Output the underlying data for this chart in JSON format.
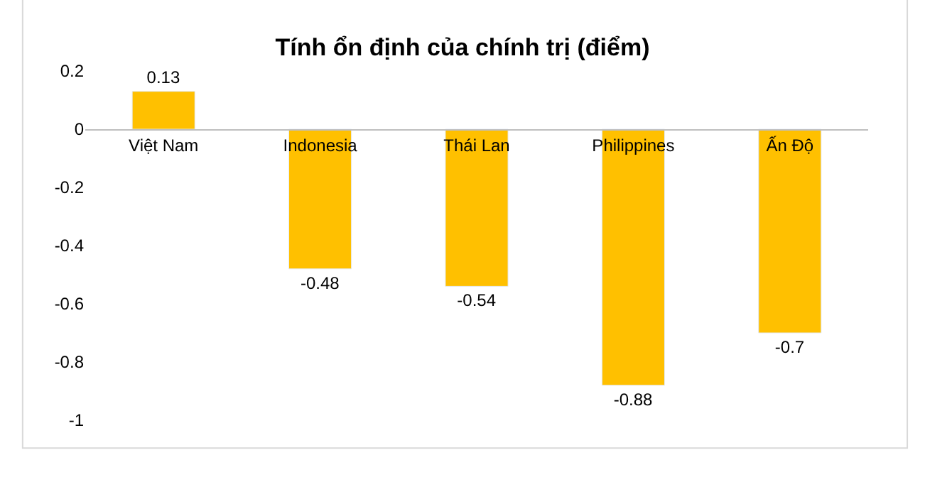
{
  "chart_data": {
    "type": "bar",
    "title": "Tính ổn định của chính trị (điểm)",
    "categories": [
      "Việt Nam",
      "Indonesia",
      "Thái Lan",
      "Philippines",
      "Ấn Độ"
    ],
    "values": [
      0.13,
      -0.48,
      -0.54,
      -0.88,
      -0.7
    ],
    "color": "#ffc000",
    "ylim": [
      -1,
      0.2
    ],
    "yticks": [
      {
        "value": -1,
        "label": "-1"
      },
      -0.8,
      -0.6,
      -0.4,
      -0.2,
      0,
      0.2
    ],
    "data_labels": true,
    "legend": false
  }
}
